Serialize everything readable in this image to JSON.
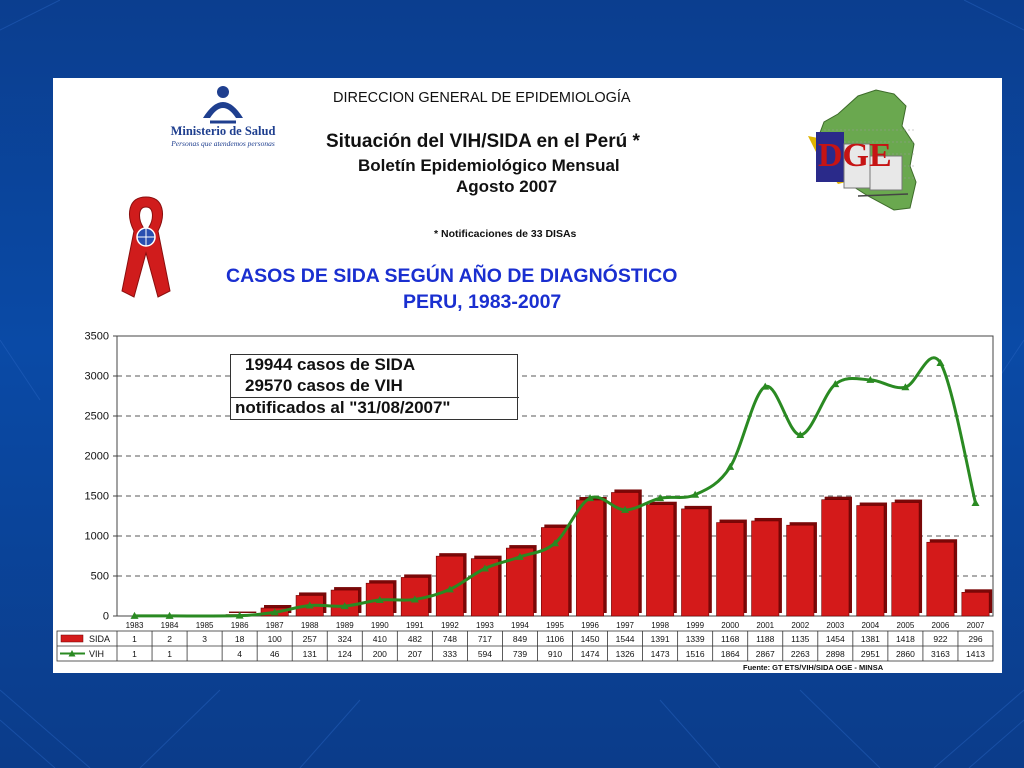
{
  "header": {
    "ministry_name": "Ministerio de Salud",
    "ministry_tagline": "Personas que atendemos personas",
    "directorate": "DIRECCION GENERAL DE EPIDEMIOLOGÍA",
    "title": "Situación del VIH/SIDA en el Perú *",
    "bulletin": "Boletín Epidemiológico Mensual",
    "period": "Agosto 2007",
    "note": "* Notificaciones de  33 DISAs",
    "dge_logo": "DGE"
  },
  "colors": {
    "background": "#0b3e8f",
    "sida_bar": "#d41a1a",
    "vih_line": "#2a8a22",
    "chart_title": "#1a2fd0"
  },
  "icons": [
    "ministry-logo-icon",
    "red-ribbon-icon",
    "dge-peru-map-icon"
  ],
  "summary": {
    "line1": "19944 casos de SIDA",
    "line2": "29570 casos de VIH",
    "line3": "notificados al \"31/08/2007\""
  },
  "source": "Fuente: GT ETS/VIH/SIDA OGE - MINSA",
  "chart_data": {
    "type": "bar",
    "title": "CASOS DE SIDA SEGÚN AÑO DE DIAGNÓSTICO",
    "subtitle": "PERU, 1983-2007",
    "ylim": [
      0,
      3500
    ],
    "yticks": [
      0,
      500,
      1000,
      1500,
      2000,
      2500,
      3000,
      3500
    ],
    "grid": true,
    "categories": [
      "1983",
      "1984",
      "1985",
      "1986",
      "1987",
      "1988",
      "1989",
      "1990",
      "1991",
      "1992",
      "1993",
      "1994",
      "1995",
      "1996",
      "1997",
      "1998",
      "1999",
      "2000",
      "2001",
      "2002",
      "2003",
      "2004",
      "2005",
      "2006",
      "2007"
    ],
    "series": [
      {
        "name": "SIDA",
        "type": "bar",
        "values": [
          1,
          2,
          3,
          18,
          100,
          257,
          324,
          410,
          482,
          748,
          717,
          849,
          1106,
          1450,
          1544,
          1391,
          1339,
          1168,
          1188,
          1135,
          1454,
          1381,
          1418,
          922,
          296
        ]
      },
      {
        "name": "VIH",
        "type": "line",
        "values": [
          1,
          1,
          null,
          4,
          46,
          131,
          124,
          200,
          207,
          333,
          594,
          739,
          910,
          1474,
          1326,
          1473,
          1516,
          1864,
          2867,
          2263,
          2898,
          2951,
          2860,
          3163,
          1413
        ]
      }
    ]
  }
}
